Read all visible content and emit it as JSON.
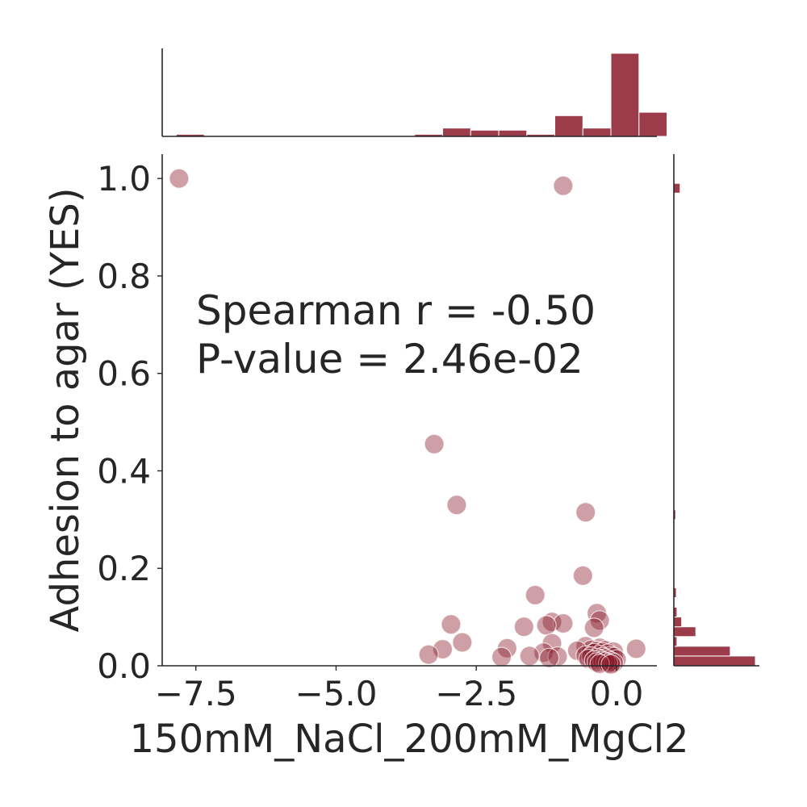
{
  "chart_data": {
    "type": "scatter",
    "xlabel": "150mM_NaCl_200mM_MgCl2",
    "ylabel": "Adhesion to agar (YES)",
    "xlim": [
      -8.1,
      0.72
    ],
    "ylim": [
      0,
      1.05
    ],
    "x_ticks": [
      -7.5,
      -5.0,
      -2.5,
      0.0
    ],
    "x_tick_labels": [
      "−7.5",
      "−5.0",
      "−2.5",
      "0.0"
    ],
    "y_ticks": [
      0.0,
      0.2,
      0.4,
      0.6,
      0.8,
      1.0
    ],
    "y_tick_labels": [
      "0.0",
      "0.2",
      "0.4",
      "0.6",
      "0.8",
      "1.0"
    ],
    "grid": false,
    "annotation": [
      "Spearman r = -0.50",
      "P-value = 2.46e-02"
    ],
    "point_color": "#8b1a2a",
    "bar_color": "#8b1a2a",
    "points": [
      {
        "x": -7.8,
        "y": 1.0
      },
      {
        "x": -0.95,
        "y": 0.985
      },
      {
        "x": -3.25,
        "y": 0.455
      },
      {
        "x": -2.85,
        "y": 0.33
      },
      {
        "x": -0.55,
        "y": 0.315
      },
      {
        "x": -0.6,
        "y": 0.185
      },
      {
        "x": -1.45,
        "y": 0.145
      },
      {
        "x": -0.35,
        "y": 0.108
      },
      {
        "x": -0.3,
        "y": 0.093
      },
      {
        "x": -1.15,
        "y": 0.09
      },
      {
        "x": -0.95,
        "y": 0.087
      },
      {
        "x": -2.95,
        "y": 0.085
      },
      {
        "x": -1.25,
        "y": 0.083
      },
      {
        "x": -1.65,
        "y": 0.08
      },
      {
        "x": -0.4,
        "y": 0.078
      },
      {
        "x": -2.75,
        "y": 0.048
      },
      {
        "x": -1.15,
        "y": 0.046
      },
      {
        "x": -0.55,
        "y": 0.04
      },
      {
        "x": -0.3,
        "y": 0.037
      },
      {
        "x": -1.95,
        "y": 0.036
      },
      {
        "x": 0.35,
        "y": 0.035
      },
      {
        "x": -3.1,
        "y": 0.034
      },
      {
        "x": -0.45,
        "y": 0.033
      },
      {
        "x": -0.2,
        "y": 0.032
      },
      {
        "x": -0.7,
        "y": 0.031
      },
      {
        "x": -0.35,
        "y": 0.03
      },
      {
        "x": -0.05,
        "y": 0.029
      },
      {
        "x": -0.25,
        "y": 0.028
      },
      {
        "x": -1.3,
        "y": 0.027
      },
      {
        "x": -0.4,
        "y": 0.026
      },
      {
        "x": -0.15,
        "y": 0.025
      },
      {
        "x": -3.35,
        "y": 0.023
      },
      {
        "x": -0.3,
        "y": 0.022
      },
      {
        "x": -0.55,
        "y": 0.021
      },
      {
        "x": -0.1,
        "y": 0.02
      },
      {
        "x": -1.55,
        "y": 0.02
      },
      {
        "x": -1.05,
        "y": 0.019
      },
      {
        "x": -0.45,
        "y": 0.019
      },
      {
        "x": -0.25,
        "y": 0.018
      },
      {
        "x": -2.05,
        "y": 0.018
      },
      {
        "x": -0.05,
        "y": 0.018
      },
      {
        "x": -0.35,
        "y": 0.016
      },
      {
        "x": -1.2,
        "y": 0.016
      },
      {
        "x": -0.2,
        "y": 0.015
      },
      {
        "x": -0.5,
        "y": 0.014
      },
      {
        "x": -0.3,
        "y": 0.013
      },
      {
        "x": 0.0,
        "y": 0.013
      },
      {
        "x": -0.15,
        "y": 0.012
      },
      {
        "x": -0.4,
        "y": 0.011
      },
      {
        "x": -0.25,
        "y": 0.01
      },
      {
        "x": -0.1,
        "y": 0.009
      },
      {
        "x": -0.2,
        "y": 0.008
      },
      {
        "x": -0.35,
        "y": 0.007
      },
      {
        "x": -0.05,
        "y": 0.006
      },
      {
        "x": -0.15,
        "y": 0.005
      },
      {
        "x": -0.3,
        "y": 0.004
      },
      {
        "x": -0.1,
        "y": 0.003
      }
    ],
    "top_histogram": [
      {
        "x0": -7.85,
        "x1": -7.35,
        "count": 0.5
      },
      {
        "x0": -3.6,
        "x1": -3.1,
        "count": 0.5
      },
      {
        "x0": -3.1,
        "x1": -2.6,
        "count": 2
      },
      {
        "x0": -2.6,
        "x1": -2.1,
        "count": 1.5
      },
      {
        "x0": -2.1,
        "x1": -1.6,
        "count": 1.5
      },
      {
        "x0": -1.6,
        "x1": -1.1,
        "count": 0.5
      },
      {
        "x0": -1.1,
        "x1": -0.6,
        "count": 5
      },
      {
        "x0": -0.6,
        "x1": -0.1,
        "count": 2
      },
      {
        "x0": -0.1,
        "x1": 0.4,
        "count": 20
      },
      {
        "x0": 0.4,
        "x1": 0.9,
        "count": 5.8
      }
    ],
    "right_histogram": [
      {
        "y0": 0.0,
        "y1": 0.02,
        "count": 26
      },
      {
        "y0": 0.02,
        "y1": 0.04,
        "count": 18
      },
      {
        "y0": 0.04,
        "y1": 0.06,
        "count": 1
      },
      {
        "y0": 0.06,
        "y1": 0.08,
        "count": 7
      },
      {
        "y0": 0.08,
        "y1": 0.1,
        "count": 2.5
      },
      {
        "y0": 0.1,
        "y1": 0.12,
        "count": 1
      },
      {
        "y0": 0.14,
        "y1": 0.16,
        "count": 0.8
      },
      {
        "y0": 0.3,
        "y1": 0.32,
        "count": 0.6
      },
      {
        "y0": 0.97,
        "y1": 0.99,
        "count": 2
      }
    ]
  }
}
